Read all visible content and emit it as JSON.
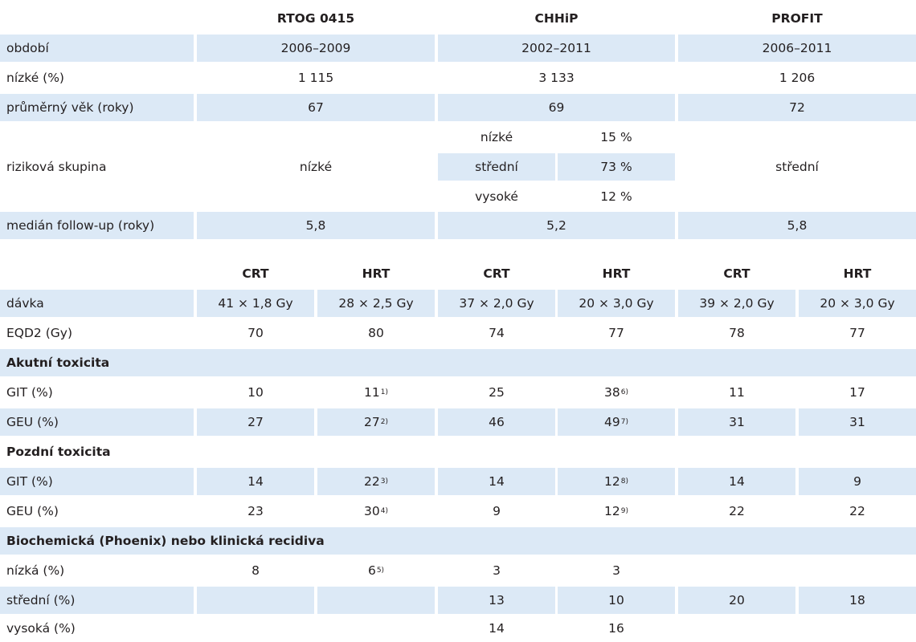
{
  "top_header": {
    "col1": "RTOG 0415",
    "col2": "CHHiP",
    "col3": "PROFIT"
  },
  "rows_top": {
    "obdobi": {
      "label": "období",
      "v1": "2006–2009",
      "v2": "2002–2011",
      "v3": "2006–2011"
    },
    "nizke": {
      "label": "nízké (%)",
      "v1": "1 115",
      "v2": "3 133",
      "v3": "1 206"
    },
    "vek": {
      "label": "průměrný věk (roky)",
      "v1": "67",
      "v2": "69",
      "v3": "72"
    },
    "riziko": {
      "label": "riziková skupina",
      "v1": "nízké",
      "sub": [
        {
          "name": "nízké",
          "val": "15 %"
        },
        {
          "name": "střední",
          "val": "73 %"
        },
        {
          "name": "vysoké",
          "val": "12 %"
        }
      ],
      "v3": "střední"
    },
    "median": {
      "label": "medián follow-up (roky)",
      "v1": "5,8",
      "v2": "5,2",
      "v3": "5,8"
    }
  },
  "bottom_header": {
    "c1": "CRT",
    "c2": "HRT",
    "c3": "CRT",
    "c4": "HRT",
    "c5": "CRT",
    "c6": "HRT"
  },
  "rows_bottom": {
    "davka": {
      "label": "dávka",
      "v": [
        "41 × 1,8 Gy",
        "28 × 2,5 Gy",
        "37 × 2,0 Gy",
        "20 × 3,0 Gy",
        "39 × 2,0 Gy",
        "20 × 3,0 Gy"
      ]
    },
    "eqd2": {
      "label": "EQD2 (Gy)",
      "v": [
        "70",
        "80",
        "74",
        "77",
        "78",
        "77"
      ]
    },
    "akutni": {
      "label": "Akutní toxicita"
    },
    "git_a": {
      "label": "GIT (%)",
      "v": [
        "10",
        "11",
        "25",
        "38",
        "11",
        "17"
      ],
      "sup2": "1)",
      "sup4": "6)"
    },
    "geu_a": {
      "label": "GEU (%)",
      "v": [
        "27",
        "27",
        "46",
        "49",
        "31",
        "31"
      ],
      "sup2": "2)",
      "sup4": "7)"
    },
    "pozdni": {
      "label": "Pozdní toxicita"
    },
    "git_p": {
      "label": "GIT (%)",
      "v": [
        "14",
        "22",
        "14",
        "12",
        "14",
        "9"
      ],
      "sup2": "3)",
      "sup4": "8)"
    },
    "geu_p": {
      "label": "GEU (%)",
      "v": [
        "23",
        "30",
        "9",
        "12",
        "22",
        "22"
      ],
      "sup2": "4)",
      "sup4": "9)"
    },
    "recidiva": {
      "label": "Biochemická (Phoenix) nebo klinická recidiva"
    },
    "nizka": {
      "label": "nízká (%)",
      "v": [
        "8",
        "6",
        "3",
        "3",
        "",
        ""
      ],
      "sup2": "5)"
    },
    "stredni": {
      "label": "střední (%)",
      "v": [
        "",
        "",
        "13",
        "10",
        "20",
        "18"
      ]
    },
    "vysoka": {
      "label": "vysoká (%)",
      "v": [
        "",
        "",
        "14",
        "16",
        "",
        ""
      ]
    }
  }
}
